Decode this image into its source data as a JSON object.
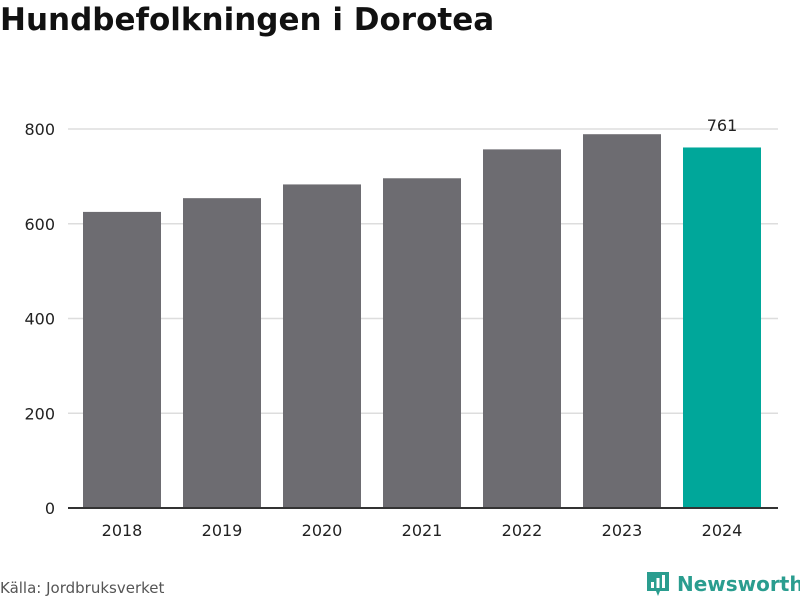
{
  "header": {
    "title": "Hundbefolkningen i Dorotea"
  },
  "footer": {
    "source": "Källa: Jordbruksverket",
    "brand": "Newsworthy"
  },
  "colors": {
    "bar": "#6d6c71",
    "highlight": "#00a79a",
    "grid": "#dddddd",
    "axis": "#333333",
    "text": "#222222",
    "brand": "#2a9d8f"
  },
  "chart_data": {
    "type": "bar",
    "categories": [
      "2018",
      "2019",
      "2020",
      "2021",
      "2022",
      "2023",
      "2024"
    ],
    "values": [
      625,
      654,
      683,
      696,
      757,
      789,
      761
    ],
    "highlight_index": 6,
    "data_labels": [
      null,
      null,
      null,
      null,
      null,
      null,
      "761"
    ],
    "yticks": [
      0,
      200,
      400,
      600,
      800
    ],
    "ylim": [
      0,
      800
    ],
    "xlabel": "",
    "ylabel": "",
    "grid": true,
    "legend": "none"
  }
}
